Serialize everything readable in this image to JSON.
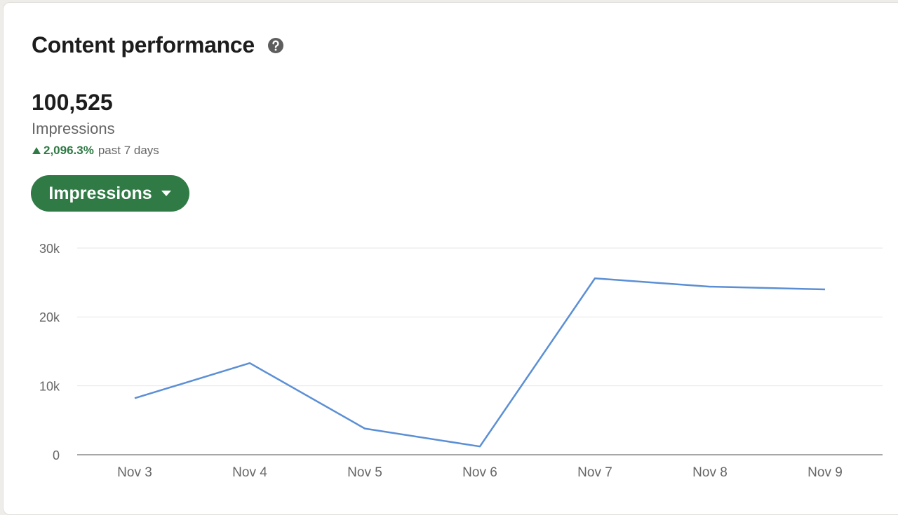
{
  "header": {
    "title": "Content performance"
  },
  "metric": {
    "value": "100,525",
    "label": "Impressions",
    "change": "2,096.3%",
    "period": "past 7 days"
  },
  "dropdown": {
    "label": "Impressions"
  },
  "chart_data": {
    "type": "line",
    "categories": [
      "Nov 3",
      "Nov 4",
      "Nov 5",
      "Nov 6",
      "Nov 7",
      "Nov 8",
      "Nov 9"
    ],
    "values": [
      8200,
      13300,
      3800,
      1200,
      25600,
      24400,
      24000
    ],
    "color": "#5b8fd5",
    "ylim": [
      0,
      30000
    ],
    "yticks": [
      0,
      {
        "value": 10000,
        "label": "10k"
      },
      {
        "value": 20000,
        "label": "20k"
      },
      {
        "value": 30000,
        "label": "30k"
      }
    ],
    "grid": true
  }
}
